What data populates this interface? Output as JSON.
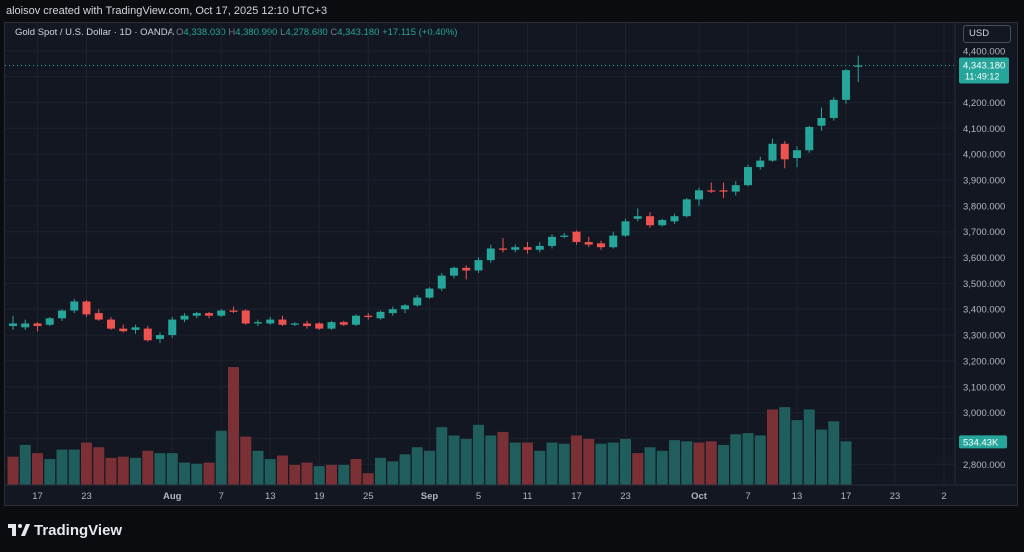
{
  "header": {
    "created_by": "aloisov created with TradingView.com, Oct 17, 2025 12:10 UTC+3"
  },
  "legend": {
    "symbol": "Gold Spot / U.S. Dollar · 1D · OANDA",
    "o_label": "O",
    "o_value": "4,338.030",
    "h_label": "H",
    "h_value": "4,380.990",
    "l_label": "L",
    "l_value": "4,278.680",
    "c_label": "C",
    "c_value": "4,343.180",
    "change": "+17.115 (+0.40%)"
  },
  "currency": "USD",
  "price_tag": {
    "price": "4,343.180",
    "countdown": "11:49:12"
  },
  "volume_tag": "534.43K",
  "footer": {
    "brand": "TradingView"
  },
  "colors": {
    "up": "#26a69a",
    "down": "#ef5350",
    "vol_up": "#1f5e5c",
    "vol_down": "#7a3034",
    "grid": "#1e222d",
    "bg": "#131722"
  },
  "chart_data": {
    "type": "candlestick",
    "title": "Gold Spot / U.S. Dollar · 1D · OANDA",
    "ylim": [
      2720,
      4430
    ],
    "y_ticks": [
      "4,400.000",
      "4,300.000",
      "4,200.000",
      "4,100.000",
      "4,000.000",
      "3,900.000",
      "3,800.000",
      "3,700.000",
      "3,600.000",
      "3,500.000",
      "3,400.000",
      "3,300.000",
      "3,200.000",
      "3,100.000",
      "3,000.000",
      "2,900.000",
      "2,800.000"
    ],
    "y_tick_values": [
      4400,
      4300,
      4200,
      4100,
      4000,
      3900,
      3800,
      3700,
      3600,
      3500,
      3400,
      3300,
      3200,
      3100,
      3000,
      2900,
      2800
    ],
    "x_ticks": [
      {
        "label": "17",
        "bold": false,
        "index": 2
      },
      {
        "label": "23",
        "bold": false,
        "index": 6
      },
      {
        "label": "Aug",
        "bold": true,
        "index": 13
      },
      {
        "label": "7",
        "bold": false,
        "index": 17
      },
      {
        "label": "13",
        "bold": false,
        "index": 21
      },
      {
        "label": "19",
        "bold": false,
        "index": 25
      },
      {
        "label": "25",
        "bold": false,
        "index": 29
      },
      {
        "label": "Sep",
        "bold": true,
        "index": 34
      },
      {
        "label": "5",
        "bold": false,
        "index": 38
      },
      {
        "label": "11",
        "bold": false,
        "index": 42
      },
      {
        "label": "17",
        "bold": false,
        "index": 46
      },
      {
        "label": "23",
        "bold": false,
        "index": 50
      },
      {
        "label": "Oct",
        "bold": true,
        "index": 56
      },
      {
        "label": "7",
        "bold": false,
        "index": 60
      },
      {
        "label": "13",
        "bold": false,
        "index": 64
      },
      {
        "label": "17",
        "bold": false,
        "index": 68
      },
      {
        "label": "23",
        "bold": false,
        "index": 72
      },
      {
        "label": "2",
        "bold": false,
        "index": 76
      }
    ],
    "candles": [
      {
        "o": 3335,
        "h": 3375,
        "l": 3320,
        "c": 3345
      },
      {
        "o": 3330,
        "h": 3360,
        "l": 3320,
        "c": 3345
      },
      {
        "o": 3345,
        "h": 3350,
        "l": 3315,
        "c": 3335
      },
      {
        "o": 3340,
        "h": 3370,
        "l": 3335,
        "c": 3365
      },
      {
        "o": 3365,
        "h": 3400,
        "l": 3355,
        "c": 3395
      },
      {
        "o": 3395,
        "h": 3440,
        "l": 3385,
        "c": 3430
      },
      {
        "o": 3430,
        "h": 3435,
        "l": 3370,
        "c": 3380
      },
      {
        "o": 3385,
        "h": 3400,
        "l": 3355,
        "c": 3360
      },
      {
        "o": 3360,
        "h": 3370,
        "l": 3320,
        "c": 3325
      },
      {
        "o": 3325,
        "h": 3340,
        "l": 3310,
        "c": 3315
      },
      {
        "o": 3320,
        "h": 3340,
        "l": 3305,
        "c": 3330
      },
      {
        "o": 3325,
        "h": 3335,
        "l": 3275,
        "c": 3280
      },
      {
        "o": 3285,
        "h": 3310,
        "l": 3270,
        "c": 3300
      },
      {
        "o": 3300,
        "h": 3370,
        "l": 3290,
        "c": 3360
      },
      {
        "o": 3360,
        "h": 3385,
        "l": 3350,
        "c": 3375
      },
      {
        "o": 3375,
        "h": 3390,
        "l": 3365,
        "c": 3385
      },
      {
        "o": 3385,
        "h": 3390,
        "l": 3365,
        "c": 3375
      },
      {
        "o": 3375,
        "h": 3400,
        "l": 3370,
        "c": 3395
      },
      {
        "o": 3395,
        "h": 3410,
        "l": 3385,
        "c": 3390
      },
      {
        "o": 3395,
        "h": 3400,
        "l": 3340,
        "c": 3345
      },
      {
        "o": 3345,
        "h": 3360,
        "l": 3335,
        "c": 3350
      },
      {
        "o": 3345,
        "h": 3370,
        "l": 3340,
        "c": 3360
      },
      {
        "o": 3360,
        "h": 3375,
        "l": 3335,
        "c": 3340
      },
      {
        "o": 3340,
        "h": 3350,
        "l": 3335,
        "c": 3345
      },
      {
        "o": 3345,
        "h": 3355,
        "l": 3325,
        "c": 3335
      },
      {
        "o": 3345,
        "h": 3350,
        "l": 3320,
        "c": 3325
      },
      {
        "o": 3325,
        "h": 3355,
        "l": 3320,
        "c": 3350
      },
      {
        "o": 3350,
        "h": 3355,
        "l": 3335,
        "c": 3340
      },
      {
        "o": 3340,
        "h": 3380,
        "l": 3335,
        "c": 3375
      },
      {
        "o": 3375,
        "h": 3385,
        "l": 3360,
        "c": 3370
      },
      {
        "o": 3365,
        "h": 3395,
        "l": 3360,
        "c": 3390
      },
      {
        "o": 3385,
        "h": 3410,
        "l": 3375,
        "c": 3400
      },
      {
        "o": 3400,
        "h": 3420,
        "l": 3385,
        "c": 3415
      },
      {
        "o": 3415,
        "h": 3455,
        "l": 3410,
        "c": 3445
      },
      {
        "o": 3445,
        "h": 3485,
        "l": 3440,
        "c": 3480
      },
      {
        "o": 3480,
        "h": 3540,
        "l": 3470,
        "c": 3530
      },
      {
        "o": 3530,
        "h": 3565,
        "l": 3520,
        "c": 3560
      },
      {
        "o": 3560,
        "h": 3570,
        "l": 3515,
        "c": 3550
      },
      {
        "o": 3550,
        "h": 3600,
        "l": 3540,
        "c": 3590
      },
      {
        "o": 3590,
        "h": 3650,
        "l": 3580,
        "c": 3635
      },
      {
        "o": 3635,
        "h": 3675,
        "l": 3620,
        "c": 3630
      },
      {
        "o": 3630,
        "h": 3650,
        "l": 3620,
        "c": 3640
      },
      {
        "o": 3640,
        "h": 3660,
        "l": 3615,
        "c": 3630
      },
      {
        "o": 3630,
        "h": 3660,
        "l": 3620,
        "c": 3645
      },
      {
        "o": 3645,
        "h": 3690,
        "l": 3635,
        "c": 3680
      },
      {
        "o": 3680,
        "h": 3695,
        "l": 3675,
        "c": 3685
      },
      {
        "o": 3700,
        "h": 3705,
        "l": 3650,
        "c": 3660
      },
      {
        "o": 3660,
        "h": 3680,
        "l": 3640,
        "c": 3650
      },
      {
        "o": 3655,
        "h": 3665,
        "l": 3630,
        "c": 3640
      },
      {
        "o": 3640,
        "h": 3700,
        "l": 3635,
        "c": 3685
      },
      {
        "o": 3685,
        "h": 3750,
        "l": 3680,
        "c": 3740
      },
      {
        "o": 3750,
        "h": 3790,
        "l": 3740,
        "c": 3760
      },
      {
        "o": 3760,
        "h": 3775,
        "l": 3715,
        "c": 3725
      },
      {
        "o": 3725,
        "h": 3750,
        "l": 3720,
        "c": 3745
      },
      {
        "o": 3740,
        "h": 3770,
        "l": 3730,
        "c": 3760
      },
      {
        "o": 3760,
        "h": 3830,
        "l": 3755,
        "c": 3825
      },
      {
        "o": 3825,
        "h": 3870,
        "l": 3800,
        "c": 3860
      },
      {
        "o": 3860,
        "h": 3890,
        "l": 3850,
        "c": 3855
      },
      {
        "o": 3860,
        "h": 3890,
        "l": 3830,
        "c": 3855
      },
      {
        "o": 3855,
        "h": 3895,
        "l": 3840,
        "c": 3880
      },
      {
        "o": 3880,
        "h": 3960,
        "l": 3875,
        "c": 3950
      },
      {
        "o": 3950,
        "h": 3990,
        "l": 3940,
        "c": 3975
      },
      {
        "o": 3975,
        "h": 4060,
        "l": 3970,
        "c": 4040
      },
      {
        "o": 4040,
        "h": 4050,
        "l": 3945,
        "c": 3980
      },
      {
        "o": 3985,
        "h": 4030,
        "l": 3950,
        "c": 4015
      },
      {
        "o": 4015,
        "h": 4110,
        "l": 4005,
        "c": 4105
      },
      {
        "o": 4110,
        "h": 4180,
        "l": 4090,
        "c": 4140
      },
      {
        "o": 4140,
        "h": 4220,
        "l": 4130,
        "c": 4210
      },
      {
        "o": 4210,
        "h": 4330,
        "l": 4195,
        "c": 4325
      },
      {
        "o": 4338,
        "h": 4381,
        "l": 4279,
        "c": 4343
      }
    ],
    "volume_max": 500,
    "volumes": [
      {
        "v": 120,
        "dir": "down"
      },
      {
        "v": 170,
        "dir": "up"
      },
      {
        "v": 135,
        "dir": "down"
      },
      {
        "v": 110,
        "dir": "up"
      },
      {
        "v": 150,
        "dir": "up"
      },
      {
        "v": 150,
        "dir": "up"
      },
      {
        "v": 180,
        "dir": "down"
      },
      {
        "v": 160,
        "dir": "down"
      },
      {
        "v": 115,
        "dir": "down"
      },
      {
        "v": 120,
        "dir": "down"
      },
      {
        "v": 115,
        "dir": "up"
      },
      {
        "v": 145,
        "dir": "down"
      },
      {
        "v": 135,
        "dir": "up"
      },
      {
        "v": 135,
        "dir": "up"
      },
      {
        "v": 95,
        "dir": "up"
      },
      {
        "v": 90,
        "dir": "up"
      },
      {
        "v": 95,
        "dir": "down"
      },
      {
        "v": 230,
        "dir": "up"
      },
      {
        "v": 500,
        "dir": "down"
      },
      {
        "v": 205,
        "dir": "down"
      },
      {
        "v": 145,
        "dir": "up"
      },
      {
        "v": 110,
        "dir": "up"
      },
      {
        "v": 125,
        "dir": "down"
      },
      {
        "v": 85,
        "dir": "down"
      },
      {
        "v": 95,
        "dir": "down"
      },
      {
        "v": 80,
        "dir": "up"
      },
      {
        "v": 85,
        "dir": "down"
      },
      {
        "v": 85,
        "dir": "up"
      },
      {
        "v": 110,
        "dir": "down"
      },
      {
        "v": 50,
        "dir": "down"
      },
      {
        "v": 115,
        "dir": "up"
      },
      {
        "v": 100,
        "dir": "up"
      },
      {
        "v": 130,
        "dir": "up"
      },
      {
        "v": 160,
        "dir": "up"
      },
      {
        "v": 145,
        "dir": "up"
      },
      {
        "v": 245,
        "dir": "up"
      },
      {
        "v": 210,
        "dir": "up"
      },
      {
        "v": 195,
        "dir": "up"
      },
      {
        "v": 255,
        "dir": "up"
      },
      {
        "v": 210,
        "dir": "up"
      },
      {
        "v": 225,
        "dir": "down"
      },
      {
        "v": 180,
        "dir": "up"
      },
      {
        "v": 180,
        "dir": "down"
      },
      {
        "v": 145,
        "dir": "up"
      },
      {
        "v": 180,
        "dir": "up"
      },
      {
        "v": 175,
        "dir": "up"
      },
      {
        "v": 210,
        "dir": "down"
      },
      {
        "v": 195,
        "dir": "down"
      },
      {
        "v": 175,
        "dir": "up"
      },
      {
        "v": 180,
        "dir": "up"
      },
      {
        "v": 195,
        "dir": "up"
      },
      {
        "v": 135,
        "dir": "down"
      },
      {
        "v": 160,
        "dir": "up"
      },
      {
        "v": 145,
        "dir": "up"
      },
      {
        "v": 190,
        "dir": "up"
      },
      {
        "v": 185,
        "dir": "up"
      },
      {
        "v": 180,
        "dir": "down"
      },
      {
        "v": 185,
        "dir": "down"
      },
      {
        "v": 170,
        "dir": "up"
      },
      {
        "v": 215,
        "dir": "up"
      },
      {
        "v": 220,
        "dir": "up"
      },
      {
        "v": 210,
        "dir": "up"
      },
      {
        "v": 320,
        "dir": "down"
      },
      {
        "v": 330,
        "dir": "up"
      },
      {
        "v": 275,
        "dir": "up"
      },
      {
        "v": 320,
        "dir": "up"
      },
      {
        "v": 235,
        "dir": "up"
      },
      {
        "v": 270,
        "dir": "up"
      },
      {
        "v": 185,
        "dir": "up"
      }
    ]
  }
}
